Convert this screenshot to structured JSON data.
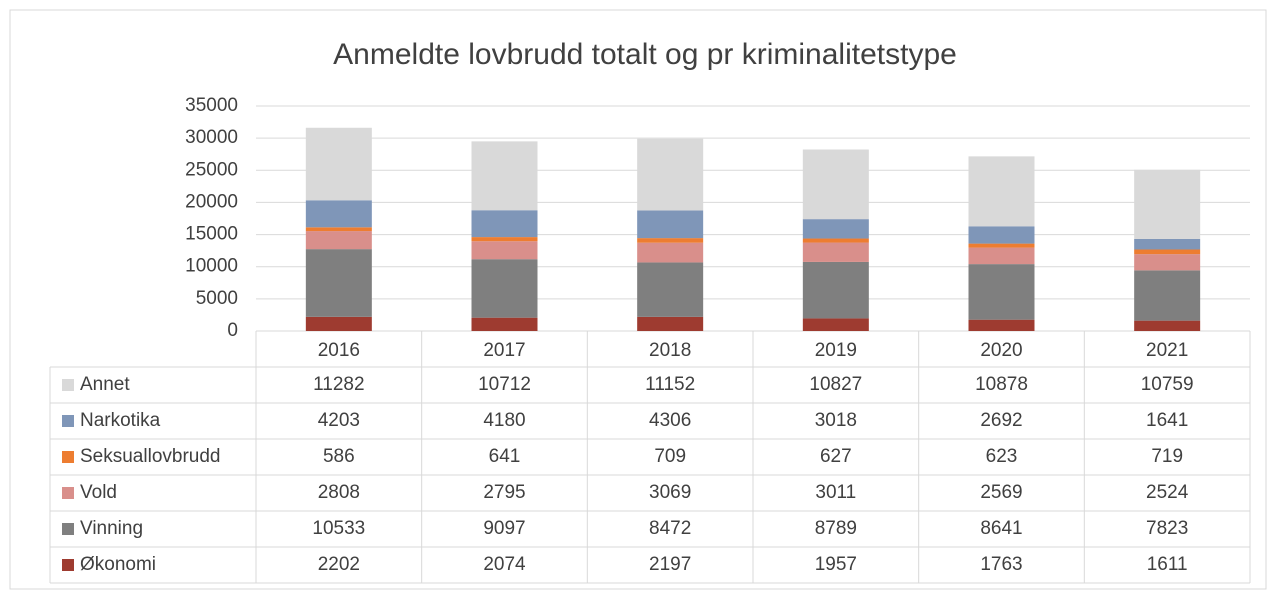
{
  "chart_data": {
    "type": "stacked_bar",
    "title": "Anmeldte lovbrudd totalt og pr kriminalitetstype",
    "categories": [
      "2016",
      "2017",
      "2018",
      "2019",
      "2020",
      "2021"
    ],
    "series": [
      {
        "name": "Økonomi",
        "color": "#9e3b30",
        "values": [
          2202,
          2074,
          2197,
          1957,
          1763,
          1611
        ]
      },
      {
        "name": "Vinning",
        "color": "#7f7f7f",
        "values": [
          10533,
          9097,
          8472,
          8789,
          8641,
          7823
        ]
      },
      {
        "name": "Vold",
        "color": "#d98f8b",
        "values": [
          2808,
          2795,
          3069,
          3011,
          2569,
          2524
        ]
      },
      {
        "name": "Seksuallovbrudd",
        "color": "#ed7d31",
        "values": [
          586,
          641,
          709,
          627,
          623,
          719
        ]
      },
      {
        "name": "Narkotika",
        "color": "#7f96b8",
        "values": [
          4203,
          4180,
          4306,
          3018,
          2692,
          1641
        ]
      },
      {
        "name": "Annet",
        "color": "#d9d9d9",
        "values": [
          11282,
          10712,
          11152,
          10827,
          10878,
          10759
        ]
      }
    ],
    "ylim": [
      0,
      35000
    ],
    "yticks": [
      0,
      5000,
      10000,
      15000,
      20000,
      25000,
      30000,
      35000
    ],
    "grid": true,
    "data_table": true
  }
}
